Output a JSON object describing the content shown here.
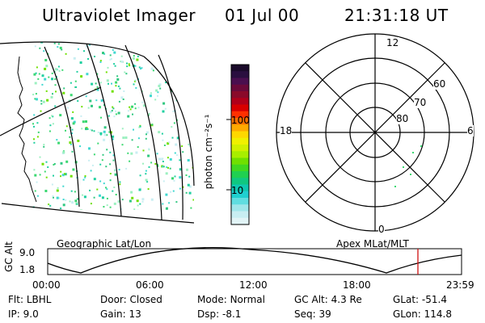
{
  "header": {
    "instrument": "Ultraviolet Imager",
    "date": "01 Jul 00",
    "time": "21:31:18 UT"
  },
  "geo_panel": {
    "label": "Geographic Lat/Lon"
  },
  "colorbar": {
    "label": "photon cm⁻²s⁻¹",
    "ticks": [
      "100",
      "10"
    ],
    "colors": [
      "#1a0a2a",
      "#2a0f3f",
      "#4a0f4f",
      "#6a0a3a",
      "#8a0a2a",
      "#b0001a",
      "#d80000",
      "#ff3000",
      "#ff7000",
      "#ffaa00",
      "#ffd800",
      "#f0f000",
      "#d0f000",
      "#a8ee00",
      "#70e000",
      "#40d820",
      "#20d050",
      "#10c880",
      "#10c8b0",
      "#20d0d0",
      "#60dde0",
      "#a0e6ea",
      "#c8eef2",
      "#e2f4f6"
    ]
  },
  "polar_panel": {
    "label": "Apex MLat/MLT",
    "mlt_labels": [
      "12",
      "18",
      "6",
      "0"
    ],
    "lat_labels": [
      "60",
      "70",
      "80"
    ]
  },
  "timeline": {
    "ylabel": "GC Alt",
    "y_ticks": [
      "9.0",
      "1.8"
    ],
    "x_ticks": [
      "00:00",
      "06:00",
      "12:00",
      "18:00",
      "23:59"
    ],
    "current_marker_time": "21:31"
  },
  "meta": {
    "row1": [
      {
        "key": "Flt:",
        "value": "LBHL"
      },
      {
        "key": "Door:",
        "value": "Closed"
      },
      {
        "key": "Mode:",
        "value": "Normal"
      },
      {
        "key": "GC Alt:",
        "value": "4.3 Re"
      },
      {
        "key": "GLat:",
        "value": "-51.4"
      }
    ],
    "row2": [
      {
        "key": "IP:",
        "value": "9.0"
      },
      {
        "key": "Gain:",
        "value": "13"
      },
      {
        "key": "Dsp:",
        "value": "-8.1"
      },
      {
        "key": "Seq:",
        "value": "39"
      },
      {
        "key": "GLon:",
        "value": "114.8"
      }
    ]
  }
}
